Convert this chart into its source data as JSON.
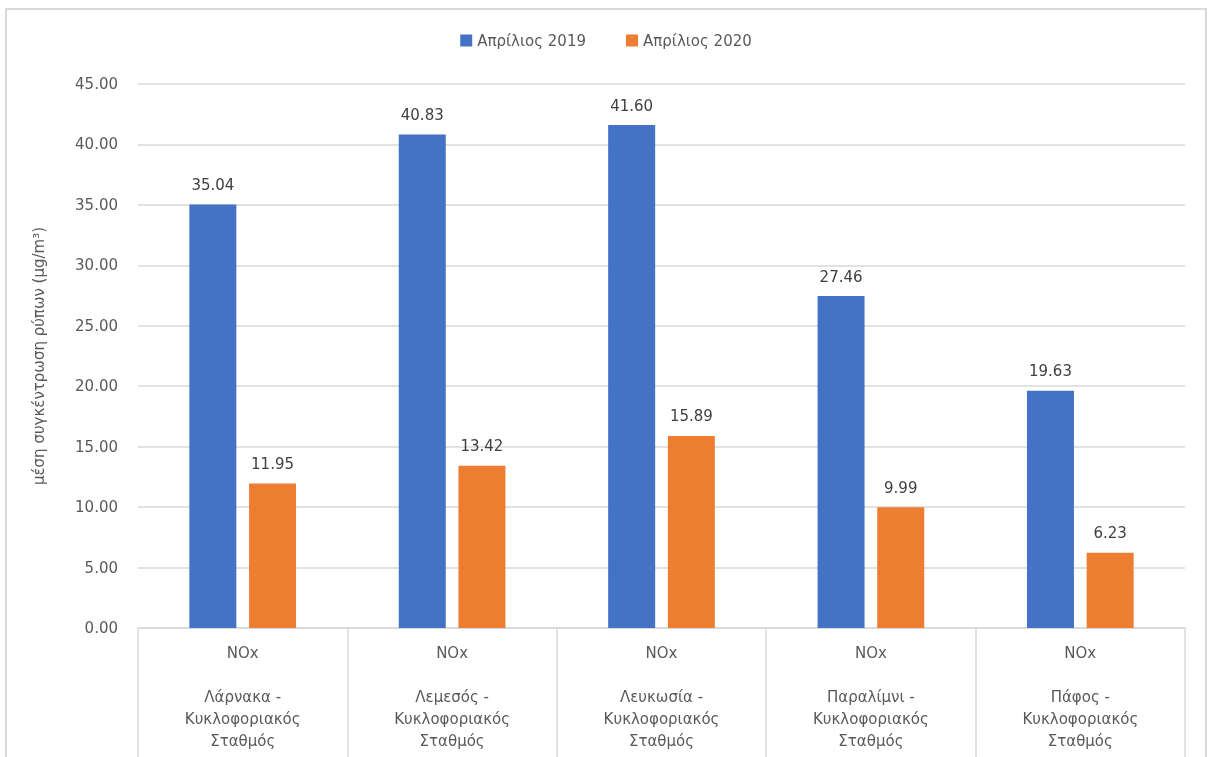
{
  "chart_data": {
    "type": "bar",
    "ylabel": "μέση συγκέντρωση ρύπων (μg/m³)",
    "categories": [
      "NOx\nΛάρνακα - Κυκλοφοριακός Σταθμός",
      "NOx\nΛεμεσός - Κυκλοφοριακός Σταθμός",
      "NOx\nΛευκωσία - Κυκλοφοριακός Σταθμός",
      "NOx\nΠαραλίμνι - Κυκλοφοριακός Σταθμός",
      "NOx\nΠάφος - Κυκλοφοριακός Σταθμός"
    ],
    "series": [
      {
        "name": "Απρίλιος 2019",
        "color": "#4472c4",
        "values": [
          35.04,
          40.83,
          41.6,
          27.46,
          19.63
        ],
        "value_labels": [
          "35.04",
          "40.83",
          "41.60",
          "27.46",
          "19.63"
        ]
      },
      {
        "name": "Απρίλιος 2020",
        "color": "#ed7d31",
        "values": [
          11.95,
          13.42,
          15.89,
          9.99,
          6.23
        ],
        "value_labels": [
          "11.95",
          "13.42",
          "15.89",
          "9.99",
          "6.23"
        ]
      }
    ],
    "ylim": [
      0,
      45
    ],
    "yticks": [
      {
        "value": 0,
        "label": "0.00"
      },
      {
        "value": 5,
        "label": "5.00"
      },
      {
        "value": 10,
        "label": "10.00"
      },
      {
        "value": 15,
        "label": "15.00"
      },
      {
        "value": 20,
        "label": "20.00"
      },
      {
        "value": 25,
        "label": "25.00"
      },
      {
        "value": 30,
        "label": "30.00"
      },
      {
        "value": 35,
        "label": "35.00"
      },
      {
        "value": 40,
        "label": "40.00"
      },
      {
        "value": 45,
        "label": "45.00"
      }
    ],
    "grid": "y",
    "legend": "top"
  }
}
